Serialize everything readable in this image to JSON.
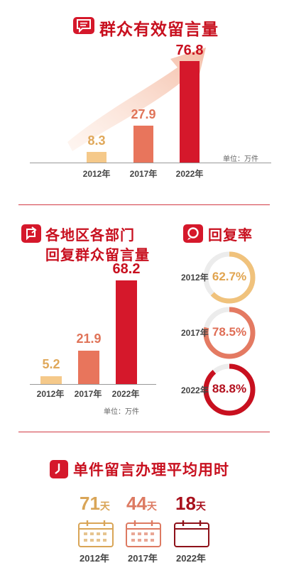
{
  "section1": {
    "title": "群众有效留言量",
    "unit": "单位：万件",
    "chart_data": {
      "type": "bar",
      "categories": [
        "2012年",
        "2017年",
        "2022年"
      ],
      "values": [
        8.3,
        27.9,
        76.8
      ],
      "value_labels": [
        "8.3",
        "27.9",
        "76.8"
      ],
      "colors": [
        "#f5c98a",
        "#e8755c",
        "#d5182b"
      ]
    }
  },
  "section2": {
    "title_line1": "各地区各部门",
    "title_line2": "回复群众留言量",
    "unit": "单位：万件",
    "chart_data": {
      "type": "bar",
      "categories": [
        "2012年",
        "2017年",
        "2022年"
      ],
      "values": [
        5.2,
        21.9,
        68.2
      ],
      "value_labels": [
        "5.2",
        "21.9",
        "68.2"
      ],
      "colors": [
        "#f5c98a",
        "#e8755c",
        "#d5182b"
      ]
    }
  },
  "section3": {
    "title": "回复率",
    "chart_data": {
      "type": "pie",
      "categories": [
        "2012年",
        "2017年",
        "2022年"
      ],
      "values": [
        62.7,
        78.5,
        88.8
      ],
      "value_labels": [
        "62.7%",
        "78.5%",
        "88.8%"
      ],
      "colors": [
        "#f0c27c",
        "#e47a62",
        "#c8101f"
      ]
    }
  },
  "section4": {
    "title": "单件留言办理平均用时",
    "unit_label": "天",
    "items": [
      {
        "year": "2012年",
        "value": 71,
        "value_label": "71",
        "color": "#d9a557"
      },
      {
        "year": "2017年",
        "value": 44,
        "value_label": "44",
        "color": "#dd7a62"
      },
      {
        "year": "2022年",
        "value": 18,
        "value_label": "18",
        "color": "#a8101c"
      }
    ]
  }
}
